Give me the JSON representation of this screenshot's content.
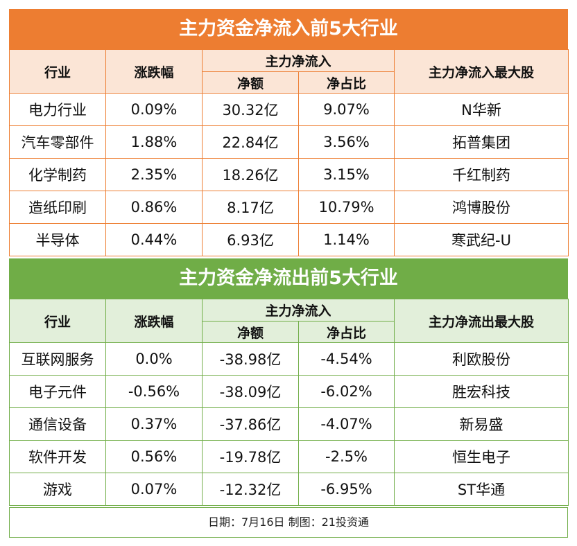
{
  "inflow": {
    "title": "主力资金净流入前5大行业",
    "headers": {
      "industry": "行业",
      "change": "涨跌幅",
      "group": "主力净流入",
      "net": "净额",
      "ratio": "净占比",
      "top_stock": "主力净流入最大股"
    },
    "rows": [
      {
        "industry": "电力行业",
        "change": "0.09%",
        "net": "30.32亿",
        "ratio": "9.07%",
        "stock": "N华新"
      },
      {
        "industry": "汽车零部件",
        "change": "1.88%",
        "net": "22.84亿",
        "ratio": "3.56%",
        "stock": "拓普集团"
      },
      {
        "industry": "化学制药",
        "change": "2.35%",
        "net": "18.26亿",
        "ratio": "3.15%",
        "stock": "千红制药"
      },
      {
        "industry": "造纸印刷",
        "change": "0.86%",
        "net": "8.17亿",
        "ratio": "10.79%",
        "stock": "鸿博股份"
      },
      {
        "industry": "半导体",
        "change": "0.44%",
        "net": "6.93亿",
        "ratio": "1.14%",
        "stock": "寒武纪-U"
      }
    ]
  },
  "outflow": {
    "title": "主力资金净流出前5大行业",
    "headers": {
      "industry": "行业",
      "change": "涨跌幅",
      "group": "主力净流入",
      "net": "净额",
      "ratio": "净占比",
      "top_stock": "主力净流出最大股"
    },
    "rows": [
      {
        "industry": "互联网服务",
        "change": "0.0%",
        "net": "-38.98亿",
        "ratio": "-4.54%",
        "stock": "利欧股份"
      },
      {
        "industry": "电子元件",
        "change": "-0.56%",
        "net": "-38.09亿",
        "ratio": "-6.02%",
        "stock": "胜宏科技"
      },
      {
        "industry": "通信设备",
        "change": "0.37%",
        "net": "-37.86亿",
        "ratio": "-4.07%",
        "stock": "新易盛"
      },
      {
        "industry": "软件开发",
        "change": "0.56%",
        "net": "-19.78亿",
        "ratio": "-2.5%",
        "stock": "恒生电子"
      },
      {
        "industry": "游戏",
        "change": "0.07%",
        "net": "-12.32亿",
        "ratio": "-6.95%",
        "stock": "ST华通"
      }
    ]
  },
  "footer": "日期：7月16日 制图：21投资通",
  "colors": {
    "inflow_accent": "#ed7d31",
    "inflow_header_bg": "#fbe5d6",
    "outflow_accent": "#70ad47",
    "outflow_header_bg": "#e2efda"
  }
}
